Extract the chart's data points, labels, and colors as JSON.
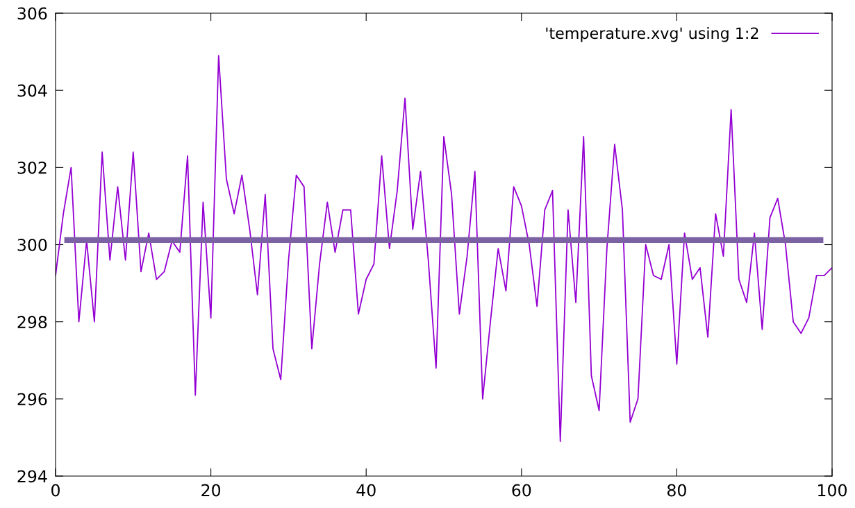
{
  "chart_data": {
    "type": "line",
    "xlim": [
      0,
      100
    ],
    "ylim": [
      294,
      306
    ],
    "xticks": [
      0,
      20,
      40,
      60,
      80,
      100
    ],
    "yticks": [
      294,
      296,
      298,
      300,
      302,
      304,
      306
    ],
    "grid": false,
    "legend": "top right",
    "marker": "none",
    "line_style": "solid",
    "series": [
      {
        "name": "'temperature.xvg' using 1:2",
        "color": "#9400d3",
        "x": [
          0,
          1,
          2,
          3,
          4,
          5,
          6,
          7,
          8,
          9,
          10,
          11,
          12,
          13,
          14,
          15,
          16,
          17,
          18,
          19,
          20,
          21,
          22,
          23,
          24,
          25,
          26,
          27,
          28,
          29,
          30,
          31,
          32,
          33,
          34,
          35,
          36,
          37,
          38,
          39,
          40,
          41,
          42,
          43,
          44,
          45,
          46,
          47,
          48,
          49,
          50,
          51,
          52,
          53,
          54,
          55,
          56,
          57,
          58,
          59,
          60,
          61,
          62,
          63,
          64,
          65,
          66,
          67,
          68,
          69,
          70,
          71,
          72,
          73,
          74,
          75,
          76,
          77,
          78,
          79,
          80,
          81,
          82,
          83,
          84,
          85,
          86,
          87,
          88,
          89,
          90,
          91,
          92,
          93,
          94,
          95,
          96,
          97,
          98,
          99,
          100
        ],
        "values": [
          299.2,
          300.8,
          302.0,
          298.0,
          300.1,
          298.0,
          302.4,
          299.6,
          301.5,
          299.6,
          302.4,
          299.3,
          300.3,
          299.1,
          299.3,
          300.1,
          299.8,
          302.3,
          296.1,
          301.1,
          298.1,
          304.9,
          301.7,
          300.8,
          301.8,
          300.4,
          298.7,
          301.3,
          297.3,
          296.5,
          299.6,
          301.8,
          301.5,
          297.3,
          299.5,
          301.1,
          299.8,
          300.9,
          300.9,
          298.2,
          299.1,
          299.5,
          302.3,
          299.9,
          301.4,
          303.8,
          300.4,
          301.9,
          299.6,
          296.8,
          302.8,
          301.3,
          298.2,
          299.7,
          301.9,
          296.0,
          298.0,
          299.9,
          298.8,
          301.5,
          301.0,
          300.0,
          298.4,
          300.9,
          301.4,
          294.9,
          300.9,
          298.5,
          302.8,
          296.6,
          295.7,
          299.9,
          302.6,
          300.9,
          295.4,
          296.0,
          300.0,
          299.2,
          299.1,
          300.0,
          296.9,
          300.3,
          299.1,
          299.4,
          297.6,
          300.8,
          299.7,
          303.5,
          299.1,
          298.5,
          300.3,
          297.8,
          300.7,
          301.2,
          300.0,
          298.0,
          297.7,
          298.1,
          299.2,
          299.2,
          299.4
        ]
      },
      {
        "color": "#7b62a3",
        "x": [
          1.5,
          98.5
        ],
        "values": [
          300.12,
          300.12
        ]
      }
    ]
  }
}
